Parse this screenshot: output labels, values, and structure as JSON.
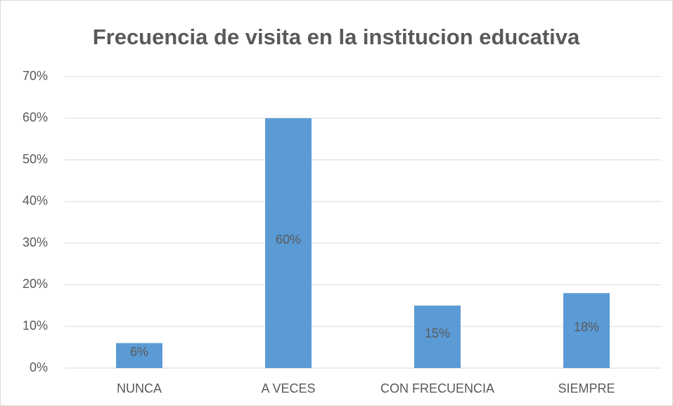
{
  "chart_data": {
    "type": "bar",
    "title": "Frecuencia de visita en la institucion educativa",
    "categories": [
      "NUNCA",
      "A VECES",
      "CON FRECUENCIA",
      "SIEMPRE"
    ],
    "values": [
      6,
      60,
      15,
      18
    ],
    "value_labels": [
      "6%",
      "60%",
      "15%",
      "18%"
    ],
    "color": "#5b9bd5",
    "ylim": [
      0,
      70
    ],
    "yticks": [
      {
        "value": 0,
        "label": "0%"
      },
      {
        "value": 10,
        "label": "10%"
      },
      {
        "value": 20,
        "label": "20%"
      },
      {
        "value": 30,
        "label": "30%"
      },
      {
        "value": 40,
        "label": "40%"
      },
      {
        "value": 50,
        "label": "50%"
      },
      {
        "value": 60,
        "label": "60%"
      },
      {
        "value": 70,
        "label": "70%"
      }
    ],
    "grid": true
  }
}
